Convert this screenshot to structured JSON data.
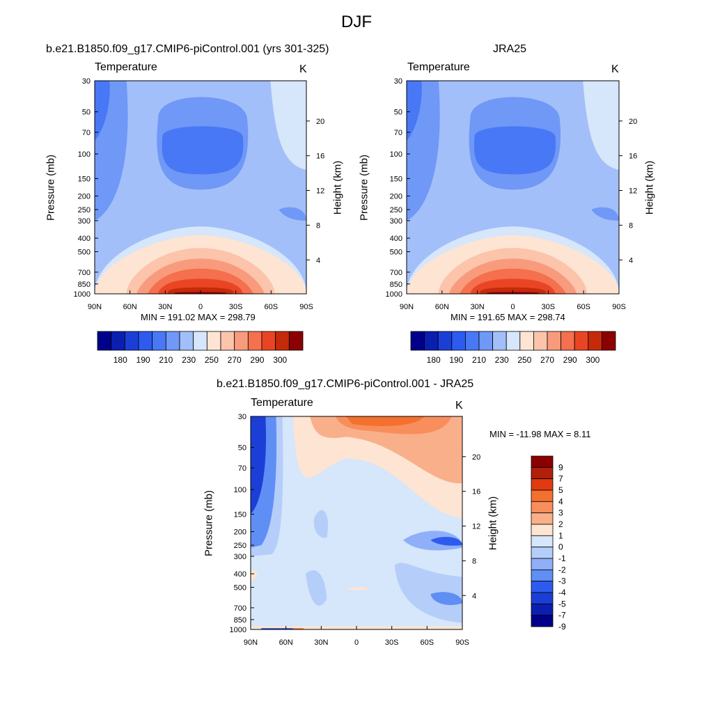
{
  "figure_title": "DJF",
  "panels": [
    {
      "title": "b.e21.B1850.f09_g17.CMIP6-piControl.001 (yrs 301-325)",
      "variable": "Temperature",
      "units": "K",
      "ylabel": "Pressure (mb)",
      "ylabel_right": "Height (km)",
      "minmax": "MIN = 191.02  MAX = 298.79"
    },
    {
      "title": "JRA25",
      "variable": "Temperature",
      "units": "K",
      "ylabel": "Pressure (mb)",
      "ylabel_right": "Height (km)",
      "minmax": "MIN = 191.65  MAX = 298.74"
    },
    {
      "title": "b.e21.B1850.f09_g17.CMIP6-piControl.001 - JRA25",
      "variable": "Temperature",
      "units": "K",
      "ylabel": "Pressure (mb)",
      "ylabel_right": "Height (km)",
      "minmax": "MIN = -11.98  MAX =   8.11"
    }
  ],
  "chart_data": [
    {
      "type": "heatmap",
      "title": "b.e21.B1850.f09_g17.CMIP6-piControl.001 (yrs 301-325)",
      "x_ticks": [
        "90N",
        "60N",
        "30N",
        "0",
        "30S",
        "60S",
        "90S"
      ],
      "y_ticks": [
        "30",
        "50",
        "70",
        "100",
        "150",
        "200",
        "250",
        "300",
        "400",
        "500",
        "700",
        "850",
        "1000"
      ],
      "y_right_ticks": [
        "20",
        "16",
        "12",
        "8",
        "4"
      ],
      "min": 191.02,
      "max": 298.79,
      "colorbar_labels": [
        "180",
        "190",
        "210",
        "230",
        "250",
        "270",
        "290",
        "300"
      ]
    },
    {
      "type": "heatmap",
      "title": "JRA25",
      "x_ticks": [
        "90N",
        "60N",
        "30N",
        "0",
        "30S",
        "60S",
        "90S"
      ],
      "y_ticks": [
        "30",
        "50",
        "70",
        "100",
        "150",
        "200",
        "250",
        "300",
        "400",
        "500",
        "700",
        "850",
        "1000"
      ],
      "y_right_ticks": [
        "20",
        "16",
        "12",
        "8",
        "4"
      ],
      "min": 191.65,
      "max": 298.74,
      "colorbar_labels": [
        "180",
        "190",
        "210",
        "230",
        "250",
        "270",
        "290",
        "300"
      ]
    },
    {
      "type": "heatmap",
      "title": "b.e21.B1850.f09_g17.CMIP6-piControl.001 - JRA25",
      "x_ticks": [
        "90N",
        "60N",
        "30N",
        "0",
        "30S",
        "60S",
        "90S"
      ],
      "y_ticks": [
        "30",
        "50",
        "70",
        "100",
        "150",
        "200",
        "250",
        "300",
        "400",
        "500",
        "700",
        "850",
        "1000"
      ],
      "y_right_ticks": [
        "20",
        "16",
        "12",
        "8",
        "4"
      ],
      "min": -11.98,
      "max": 8.11,
      "colorbar_labels": [
        "9",
        "7",
        "5",
        "4",
        "3",
        "2",
        "1",
        "0",
        "-1",
        "-2",
        "-3",
        "-4",
        "-5",
        "-7",
        "-9"
      ]
    }
  ],
  "colors": {
    "abs_scale": [
      "#00008b",
      "#0a1fb0",
      "#1b3fd6",
      "#2d5bf0",
      "#4878f5",
      "#6f98f7",
      "#a2bff9",
      "#d6e6fb",
      "#fde4d3",
      "#fbc4ab",
      "#f89b7c",
      "#f4704e",
      "#e94524",
      "#c52a0b",
      "#8b0000"
    ],
    "diff_scale": [
      "#8b0000",
      "#b0200a",
      "#e03a10",
      "#f4702f",
      "#f88e5c",
      "#f9b08a",
      "#fde4d3",
      "#d6e6fb",
      "#b5cdf9",
      "#8fb0f8",
      "#5f8ef5",
      "#2d5bf0",
      "#1b3fd6",
      "#0a1fb0",
      "#00008b"
    ]
  }
}
